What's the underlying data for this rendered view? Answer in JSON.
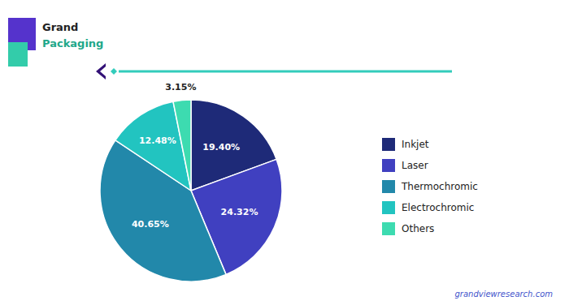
{
  "chart_data": {
    "type": "pie",
    "categories": [
      "Inkjet",
      "Laser",
      "Thermochromic",
      "Electrochromic",
      "Others"
    ],
    "values": [
      19.4,
      24.32,
      40.65,
      12.48,
      3.15
    ],
    "value_labels": [
      "19.40%",
      "24.32%",
      "40.65%",
      "12.48%",
      "3.15%"
    ],
    "colors": [
      "#1e2a78",
      "#4040c0",
      "#2288aa",
      "#22c4c0",
      "#3ddbb0"
    ],
    "data_labels": true,
    "legend": "right",
    "annotations": [
      "Grand",
      "Packaging",
      "grandviewresearch.com"
    ]
  }
}
